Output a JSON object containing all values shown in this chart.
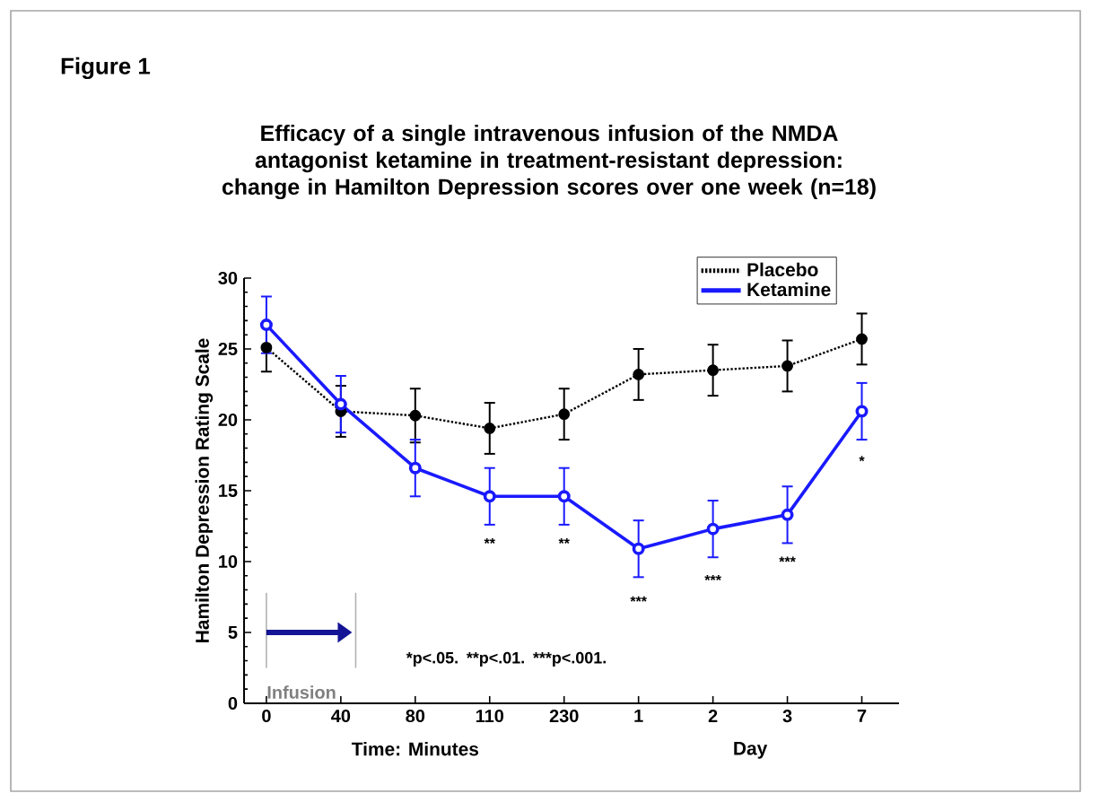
{
  "chart_data": {
    "type": "line",
    "title": "Efficacy of a single intravenous infusion of the NMDA antagonist ketamine in treatment-resistant depression: change in Hamilton Depression scores over one week (n=18)",
    "xlabel": "Time: Minutes",
    "ylabel": "Hamilton Depression Rating Scale",
    "categories": [
      "0",
      "40",
      "80",
      "110",
      "230",
      "1",
      "2",
      "3",
      "7"
    ],
    "series": [
      {
        "name": "Placebo",
        "color": "#000000",
        "line_style": "dotted",
        "marker": "circle",
        "values": [
          25.1,
          20.6,
          20.3,
          19.4,
          20.4,
          23.2,
          23.5,
          23.8,
          25.7
        ],
        "errors": [
          1.7,
          1.8,
          1.9,
          1.8,
          1.8,
          1.8,
          1.8,
          1.8,
          1.8
        ]
      },
      {
        "name": "Ketamine",
        "color": "#1a1aff",
        "line_style": "solid",
        "marker": "circle",
        "values": [
          26.7,
          21.1,
          16.6,
          14.6,
          14.6,
          10.9,
          12.3,
          13.3,
          20.6
        ],
        "errors": [
          2.0,
          2.0,
          2.0,
          2.0,
          2.0,
          2.0,
          2.0,
          2.0,
          2.0
        ]
      }
    ],
    "ylim": [
      0,
      30
    ],
    "yticks": [
      0,
      5,
      10,
      15,
      20,
      25,
      30
    ],
    "grid": false,
    "legend": "top right",
    "annotations": [
      "Figure 1",
      "*p<.05.",
      "**p<.01.",
      "***p<.001.",
      "Infusion",
      "Day",
      "**",
      "**",
      "***",
      "***",
      "***",
      "*"
    ]
  }
}
